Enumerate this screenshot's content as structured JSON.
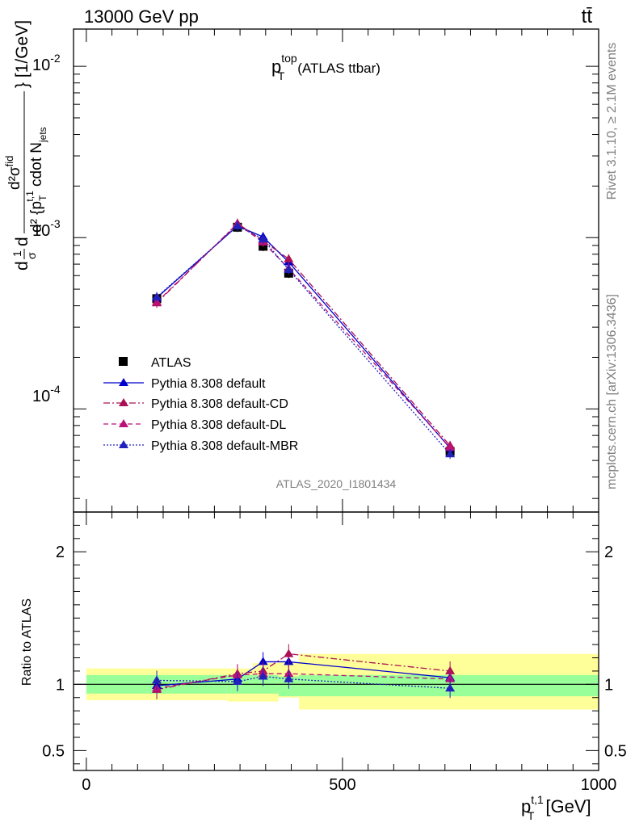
{
  "header": {
    "left": "13000 GeV pp",
    "right": "tt̄"
  },
  "side_labels": {
    "rivet": "Rivet 3.1.10, ≥ 2.1M events",
    "mcplots": "mcplots.cern.ch [arXiv:1306.3436]"
  },
  "chart_data": [
    {
      "type": "line",
      "panel": "main",
      "title": "p_T^top (ATLAS ttbar)",
      "title_main": "p",
      "title_sup": "top",
      "title_sub": "T",
      "title_rest": "(ATLAS ttbar)",
      "ylabel": "d1/σ d d²σ^{fid} / d² {p_T^{t,1} cdot N_jets} [1/GeV]",
      "ylabel_parts": {
        "prefix": "d",
        "frac1_num": "1",
        "frac1_den": "σ",
        "d": "d",
        "frac2_num": "d²σ",
        "frac2_num_sup": "fid",
        "frac2_den": "d² {p",
        "frac2_den_sub": "T",
        "frac2_den_sup": "t,1",
        "frac2_den_rest": " cdot N",
        "frac2_den_sub2": "jets",
        "unit": "} [1/GeV]"
      },
      "yscale": "log",
      "ylim": [
        2.5e-05,
        0.0165
      ],
      "xlim": [
        -25,
        1000
      ],
      "yticks": [
        {
          "value": 0.01,
          "base": "10",
          "exp": "-2"
        },
        {
          "value": 0.001,
          "base": "10",
          "exp": "-3"
        },
        {
          "value": 0.0001,
          "base": "10",
          "exp": "-4"
        }
      ],
      "watermark": "ATLAS_2020_I1801434",
      "legend_position": "lower-left",
      "x": [
        137.5,
        295,
        345,
        395,
        710
      ],
      "series": [
        {
          "name": "ATLAS",
          "color": "#000000",
          "marker": "square",
          "style": "none",
          "values": [
            0.00044,
            0.00115,
            0.00089,
            0.00062,
            5.65e-05
          ]
        },
        {
          "name": "Pythia 8.308 default",
          "color": "#0000cc",
          "marker": "triangle",
          "style": "solid",
          "values": [
            0.000445,
            0.00117,
            0.00101,
            0.00072,
            5.9e-05
          ]
        },
        {
          "name": "Pythia 8.308 default-CD",
          "color": "#aa1155",
          "marker": "triangle",
          "style": "dashdot",
          "values": [
            0.000415,
            0.00121,
            0.00096,
            0.00075,
            6.1e-05
          ]
        },
        {
          "name": "Pythia 8.308 default-DL",
          "color": "#bb1177",
          "marker": "triangle",
          "style": "dashed",
          "values": [
            0.00042,
            0.0012,
            0.00094,
            0.00066,
            5.95e-05
          ]
        },
        {
          "name": "Pythia 8.308 default-MBR",
          "color": "#2222bb",
          "marker": "triangle",
          "style": "dotted",
          "values": [
            0.00045,
            0.00117,
            0.00098,
            0.00065,
            5.45e-05
          ]
        }
      ]
    },
    {
      "type": "line",
      "panel": "ratio",
      "ylabel": "Ratio to ATLAS",
      "ylim": [
        0.35,
        2.3
      ],
      "xlim": [
        -25,
        1000
      ],
      "yticks": [
        0.5,
        1,
        2
      ],
      "xticks": [
        0,
        500,
        1000
      ],
      "xlabel": "p_T^{t,1} [GeV]",
      "xlabel_parts": {
        "main": "p",
        "sub": "T",
        "sup": "t,1",
        "unit": "[GeV]"
      },
      "bins": [
        [
          0,
          275
        ],
        [
          275,
          325
        ],
        [
          325,
          375
        ],
        [
          375,
          415
        ],
        [
          415,
          1000
        ]
      ],
      "band_inner": [
        [
          0.93,
          1.07
        ],
        [
          0.93,
          1.07
        ],
        [
          0.93,
          1.07
        ],
        [
          0.91,
          1.06
        ],
        [
          0.91,
          1.07
        ]
      ],
      "band_outer": [
        [
          0.88,
          1.12
        ],
        [
          0.87,
          1.12
        ],
        [
          0.87,
          1.16
        ],
        [
          0.9,
          1.17
        ],
        [
          0.81,
          1.23
        ]
      ],
      "x": [
        137.5,
        295,
        345,
        395,
        710
      ],
      "series": [
        {
          "name": "Pythia 8.308 default",
          "values": [
            0.99,
            1.04,
            1.17,
            1.17,
            1.05
          ]
        },
        {
          "name": "Pythia 8.308 default-CD",
          "values": [
            0.96,
            1.08,
            1.1,
            1.23,
            1.1
          ]
        },
        {
          "name": "Pythia 8.308 default-DL",
          "values": [
            0.97,
            1.07,
            1.08,
            1.08,
            1.04
          ]
        },
        {
          "name": "Pythia 8.308 default-MBR",
          "values": [
            1.03,
            1.02,
            1.06,
            1.04,
            0.97
          ]
        }
      ]
    }
  ]
}
